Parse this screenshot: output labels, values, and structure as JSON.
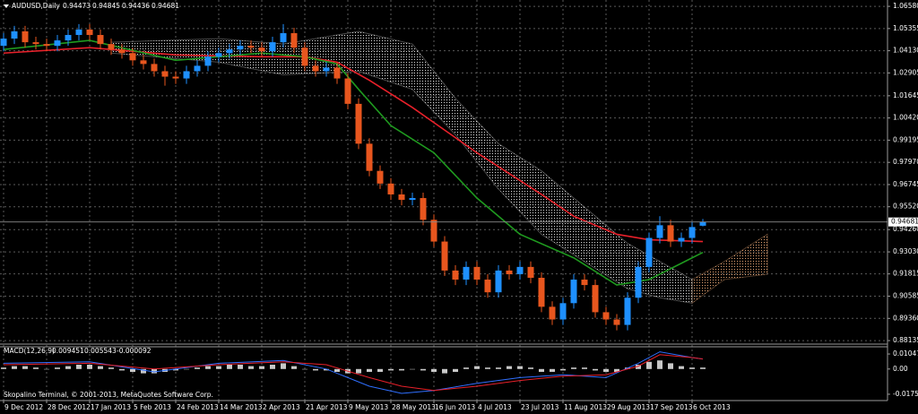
{
  "chart_data": {
    "type": "candlestick",
    "symbol": "AUDUSD,Daily",
    "footer": "Skopalino Terminal, © 2001-2013, MetaQuotes Software Corp.",
    "categories": [
      "9 Dec 2012",
      null,
      null,
      null,
      "28 Dec 2012",
      null,
      null,
      null,
      "17 Jan 2013",
      null,
      null,
      null,
      "5 Feb 2013",
      null,
      null,
      null,
      "24 Feb 2013",
      null,
      null,
      null,
      "14 Mar 2013",
      null,
      null,
      null,
      "2 Apr 2013",
      null,
      null,
      null,
      "21 Apr 2013",
      null,
      null,
      null,
      "9 May 2013",
      null,
      null,
      null,
      "28 May 2013",
      null,
      null,
      null,
      "16 Jun 2013",
      null,
      null,
      null,
      "4 Jul 2013",
      null,
      null,
      null,
      "23 Jul 2013",
      null,
      null,
      null,
      "11 Aug 2013",
      null,
      null,
      null,
      "29 Aug 2013",
      null,
      null,
      null,
      "17 Sep 2013",
      null,
      null,
      null,
      "6 Oct 2013",
      null
    ],
    "open": [
      1.044,
      1.048,
      1.052,
      1.046,
      1.045,
      1.044,
      1.047,
      1.05,
      1.053,
      1.05,
      1.045,
      1.042,
      1.04,
      1.036,
      1.034,
      1.03,
      1.027,
      1.026,
      1.03,
      1.033,
      1.038,
      1.04,
      1.042,
      1.044,
      1.043,
      1.041,
      1.046,
      1.051,
      1.043,
      1.033,
      1.03,
      1.032,
      1.026,
      1.012,
      0.99,
      0.975,
      0.968,
      0.962,
      0.959,
      0.96,
      0.948,
      0.936,
      0.92,
      0.915,
      0.922,
      0.915,
      0.908,
      0.92,
      0.918,
      0.922,
      0.916,
      0.9,
      0.893,
      0.902,
      0.915,
      0.912,
      0.897,
      0.893,
      0.89,
      0.905,
      0.922,
      0.938,
      0.945,
      0.936,
      0.938,
      0.94473
    ],
    "high": [
      1.051,
      1.055,
      1.055,
      1.049,
      1.048,
      1.05,
      1.053,
      1.056,
      1.056,
      1.053,
      1.048,
      1.045,
      1.043,
      1.039,
      1.037,
      1.033,
      1.03,
      1.033,
      1.036,
      1.041,
      1.043,
      1.045,
      1.047,
      1.047,
      1.046,
      1.049,
      1.056,
      1.054,
      1.046,
      1.036,
      1.035,
      1.035,
      1.029,
      1.015,
      0.993,
      0.978,
      0.971,
      0.965,
      0.963,
      0.963,
      0.951,
      0.939,
      0.923,
      0.925,
      0.925,
      0.918,
      0.923,
      0.923,
      0.925,
      0.925,
      0.919,
      0.903,
      0.905,
      0.918,
      0.918,
      0.915,
      0.9,
      0.896,
      0.908,
      0.925,
      0.941,
      0.95,
      0.948,
      0.941,
      0.947,
      0.94845
    ],
    "low": [
      1.041,
      1.045,
      1.043,
      1.042,
      1.041,
      1.041,
      1.044,
      1.047,
      1.047,
      1.042,
      1.039,
      1.037,
      1.033,
      1.031,
      1.027,
      1.022,
      1.023,
      1.023,
      1.027,
      1.03,
      1.035,
      1.037,
      1.039,
      1.04,
      1.038,
      1.038,
      1.043,
      1.04,
      1.03,
      1.027,
      1.027,
      1.023,
      1.009,
      0.987,
      0.972,
      0.965,
      0.959,
      0.956,
      0.956,
      0.945,
      0.933,
      0.917,
      0.912,
      0.912,
      0.912,
      0.905,
      0.905,
      0.915,
      0.915,
      0.913,
      0.897,
      0.89,
      0.89,
      0.899,
      0.909,
      0.894,
      0.89,
      0.887,
      0.887,
      0.902,
      0.919,
      0.935,
      0.933,
      0.933,
      0.935,
      0.94436
    ],
    "close": [
      1.048,
      1.052,
      1.046,
      1.045,
      1.044,
      1.047,
      1.05,
      1.053,
      1.05,
      1.045,
      1.042,
      1.04,
      1.036,
      1.034,
      1.03,
      1.027,
      1.026,
      1.03,
      1.033,
      1.038,
      1.04,
      1.042,
      1.044,
      1.043,
      1.041,
      1.046,
      1.051,
      1.043,
      1.033,
      1.03,
      1.032,
      1.026,
      1.012,
      0.99,
      0.975,
      0.968,
      0.962,
      0.959,
      0.96,
      0.948,
      0.936,
      0.92,
      0.915,
      0.922,
      0.915,
      0.908,
      0.92,
      0.918,
      0.922,
      0.916,
      0.9,
      0.893,
      0.902,
      0.915,
      0.912,
      0.897,
      0.893,
      0.89,
      0.905,
      0.922,
      0.938,
      0.945,
      0.936,
      0.938,
      0.944,
      0.94681
    ],
    "up_color": "#1e90ff",
    "down_color": "#e8561e",
    "ylim": [
      0.8799,
      1.0693
    ],
    "yticks": [
      {
        "value": 1.0658,
        "label": "1.06580"
      },
      1.05355,
      {
        "value": 1.0413,
        "label": "1.04130"
      },
      1.02905,
      1.01645,
      {
        "value": 1.0042,
        "label": "1.00420"
      },
      0.99195,
      {
        "value": 0.9797,
        "label": "0.97970"
      },
      0.96745,
      {
        "value": 0.9552,
        "label": "0.95520"
      },
      {
        "value": 0.9426,
        "label": "0.94260"
      },
      {
        "value": 0.9303,
        "label": "0.93030"
      },
      0.91815,
      0.90585,
      {
        "value": 0.8936,
        "label": "0.89360"
      },
      0.88135
    ],
    "grid": true,
    "overlays": [
      {
        "color": "#e8202a",
        "x": [
          0,
          8,
          16,
          24,
          28,
          31,
          34,
          38,
          44,
          50,
          53,
          57,
          60,
          65
        ],
        "values": [
          1.04,
          1.043,
          1.039,
          1.038,
          1.038,
          1.035,
          1.025,
          1.01,
          0.985,
          0.962,
          0.95,
          0.94,
          0.937,
          0.936
        ]
      },
      {
        "color": "#1f9a1f",
        "x": [
          0,
          8,
          16,
          24,
          28,
          31,
          33,
          36,
          40,
          44,
          48,
          53,
          57,
          60,
          65
        ],
        "values": [
          1.042,
          1.047,
          1.036,
          1.04,
          1.038,
          1.034,
          1.02,
          1.0,
          0.985,
          0.96,
          0.94,
          0.927,
          0.912,
          0.915,
          0.93
        ]
      }
    ],
    "cloud": {
      "color": "#d8d8d8",
      "future_color": "#e0a070",
      "x": [
        10,
        20,
        26,
        33,
        38,
        42,
        46,
        50,
        54,
        58,
        61,
        64,
        67,
        71
      ],
      "upper": [
        1.046,
        1.048,
        1.045,
        1.052,
        1.045,
        1.015,
        0.99,
        0.975,
        0.955,
        0.935,
        0.925,
        0.915,
        0.925,
        0.94
      ],
      "lower": [
        1.04,
        1.035,
        1.028,
        1.03,
        1.02,
        0.995,
        0.965,
        0.94,
        0.925,
        0.91,
        0.905,
        0.902,
        0.915,
        0.918
      ]
    },
    "macd": {
      "label": "MACD(12,26,9)",
      "readout": [
        0.009451,
        0.005543,
        -9.2e-05
      ],
      "ylim": [
        -0.022,
        0.0155
      ],
      "yticks": [
        0.010475,
        {
          "value": 0,
          "label": "0.00"
        },
        -0.017585
      ],
      "histogram_color": "#c8c8c8",
      "histogram": [
        0.001,
        0.002,
        0.002,
        0.001,
        0.0,
        0.001,
        0.002,
        0.003,
        0.003,
        0.002,
        0.001,
        -0.001,
        -0.002,
        -0.003,
        -0.003,
        -0.002,
        -0.001,
        0.0,
        0.001,
        0.002,
        0.002,
        0.003,
        0.003,
        0.002,
        0.002,
        0.003,
        0.004,
        0.002,
        0.0,
        -0.001,
        -0.001,
        -0.002,
        -0.003,
        -0.003,
        -0.002,
        -0.002,
        -0.001,
        -0.001,
        0.0,
        -0.001,
        -0.002,
        -0.003,
        -0.002,
        0.001,
        0.002,
        0.001,
        0.001,
        0.002,
        0.002,
        0.001,
        -0.002,
        -0.002,
        -0.001,
        0.001,
        0.001,
        -0.001,
        -0.002,
        -0.002,
        0.001,
        0.003,
        0.005,
        0.006,
        0.004,
        0.002,
        0.001,
        0.001
      ],
      "lines": [
        {
          "color": "#2f6fff",
          "x": [
            0,
            8,
            14,
            20,
            26,
            30,
            34,
            37,
            40,
            44,
            48,
            52,
            56,
            59,
            61,
            64,
            65
          ],
          "values": [
            0.004,
            0.005,
            -0.002,
            0.004,
            0.006,
            0.0,
            -0.012,
            -0.017,
            -0.015,
            -0.01,
            -0.006,
            -0.004,
            -0.006,
            0.004,
            0.012,
            0.008,
            0.007
          ]
        },
        {
          "color": "#e8202a",
          "x": [
            0,
            8,
            14,
            20,
            26,
            30,
            34,
            37,
            40,
            44,
            48,
            52,
            56,
            59,
            61,
            64,
            65
          ],
          "values": [
            0.003,
            0.004,
            0.0,
            0.003,
            0.005,
            0.003,
            -0.006,
            -0.012,
            -0.015,
            -0.012,
            -0.008,
            -0.005,
            -0.004,
            0.002,
            0.01,
            0.008,
            0.007
          ]
        }
      ]
    }
  }
}
